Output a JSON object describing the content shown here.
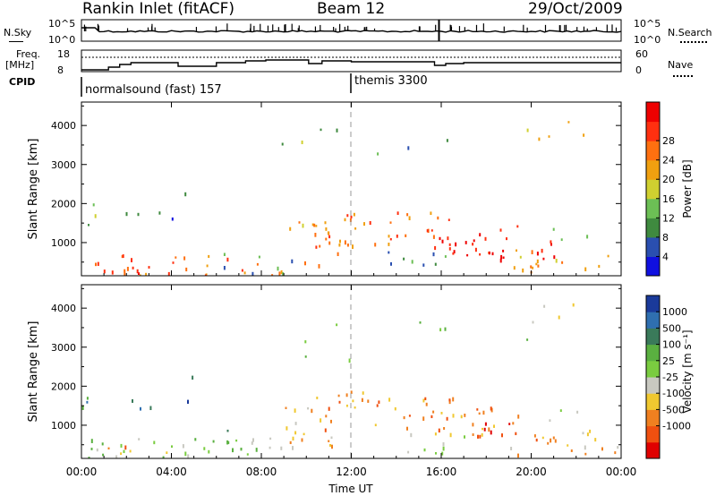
{
  "header": {
    "title": "Rankin Inlet (fitACF)",
    "beam": "Beam 12",
    "date": "29/Oct/2009"
  },
  "side_labels": {
    "nsky": "N.Sky",
    "nsearch": "N.Search",
    "freq": "Freq.",
    "mhz": "[MHz]",
    "nave": "Nave",
    "cpid": "CPID"
  },
  "cpid_modes": [
    {
      "label": "normalsound (fast) 157",
      "start_hour": 0
    },
    {
      "label": "themis 3300",
      "start_hour": 12
    }
  ],
  "chart_data": [
    {
      "type": "line",
      "name": "noise",
      "series": [
        "N.Sky",
        "N.Search"
      ],
      "yticks": [
        "10^5",
        "10^0"
      ],
      "right_yticks": [
        "10^5",
        "10^0"
      ]
    },
    {
      "type": "line",
      "name": "frequency-nave",
      "series": [
        "Freq.",
        "Nave"
      ],
      "ylabel": "[MHz]",
      "yticks": [
        18,
        8
      ],
      "right_yticks": [
        60,
        0
      ]
    },
    {
      "type": "heatmap",
      "name": "power",
      "ylabel": "Slant Range [km]",
      "yticks": [
        1000,
        2000,
        3000,
        4000
      ],
      "colorbar_label": "Power [dB]",
      "colorbar_ticks": [
        4,
        8,
        12,
        16,
        20,
        24,
        28
      ],
      "colorbar_colors": [
        "#1010e0",
        "#2a4fb0",
        "#3f8a3f",
        "#6cbf55",
        "#d0d030",
        "#f0a010",
        "#ff7010",
        "#ff3010",
        "#ee0000"
      ]
    },
    {
      "type": "heatmap",
      "name": "velocity",
      "ylabel": "Slant Range [km]",
      "yticks": [
        1000,
        2000,
        3000,
        4000
      ],
      "colorbar_label": "Velocity [m s⁻¹]",
      "colorbar_ticks": [
        1000,
        500,
        100,
        25,
        -25,
        -100,
        -500,
        -1000
      ],
      "colorbar_colors": [
        "#1a3a9a",
        "#2f6fb0",
        "#3a7a5a",
        "#5ab040",
        "#7acc40",
        "#c8c8c0",
        "#f0c830",
        "#f08020",
        "#f05010",
        "#e00000"
      ]
    }
  ],
  "xaxis": {
    "label": "Time UT",
    "ticks": [
      "00:00",
      "04:00",
      "08:00",
      "12:00",
      "16:00",
      "20:00",
      "00:00"
    ]
  }
}
